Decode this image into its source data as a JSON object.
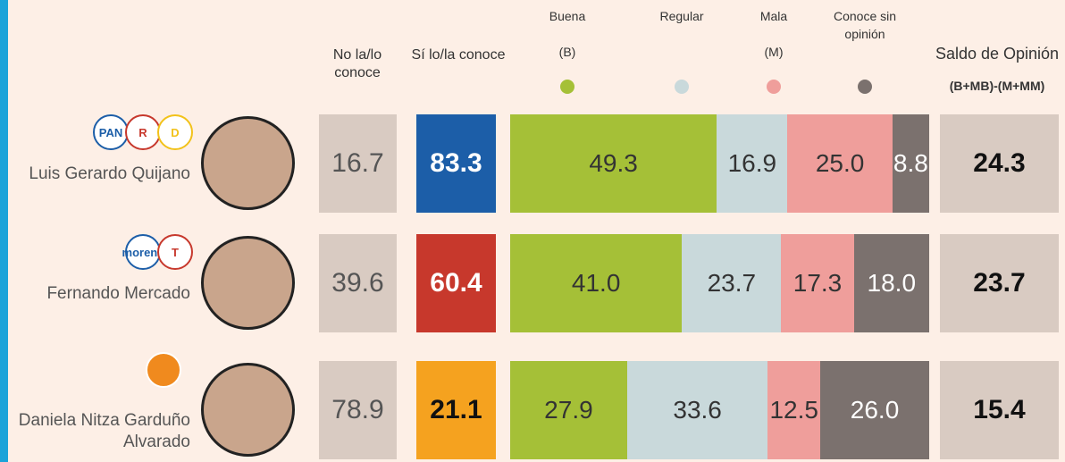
{
  "chart_data": {
    "type": "bar",
    "stacked": true,
    "orientation": "horizontal",
    "categories": [
      "Luis Gerardo Quijano",
      "Fernando Mercado",
      "Daniela Nitza Garduño Alvarado"
    ],
    "logos": [
      [
        "PAN",
        "R",
        "D"
      ],
      [
        "morena",
        "T"
      ],
      []
    ],
    "xlim": [
      0,
      100
    ],
    "series": [
      {
        "name": "Buena",
        "abbr": "(B)",
        "color": "#a5c037",
        "values": [
          49.3,
          41.0,
          27.9
        ],
        "value_labels": [
          "49.3",
          "41.0",
          "27.9"
        ]
      },
      {
        "name": "Regular",
        "color": "#c9d9db",
        "values": [
          16.9,
          23.7,
          33.6
        ],
        "value_labels": [
          "16.9",
          "23.7",
          "33.6"
        ]
      },
      {
        "name": "Mala",
        "abbr": "(M)",
        "color": "#ef9e9b",
        "values": [
          25.0,
          17.3,
          12.5
        ],
        "value_labels": [
          "25.0",
          "17.3",
          "12.5"
        ]
      },
      {
        "name": "Conoce sin opinión",
        "color": "#7b716e",
        "values": [
          8.8,
          18.0,
          26.0
        ],
        "value_labels": [
          "8.8",
          "18.0",
          "26.0"
        ]
      }
    ],
    "columns": [
      {
        "name": "No la/lo conoce",
        "values": [
          16.7,
          39.6,
          78.9
        ]
      },
      {
        "name": "Sí lo/la conoce",
        "colors": [
          "#1c5ea8",
          "#c7382c",
          "#f5a21f"
        ],
        "values": [
          83.3,
          60.4,
          21.1
        ]
      },
      {
        "name": "Saldo de Opinión",
        "formula": "(B+MB)-(M+MM)",
        "values": [
          24.3,
          23.7,
          15.4
        ]
      }
    ]
  }
}
